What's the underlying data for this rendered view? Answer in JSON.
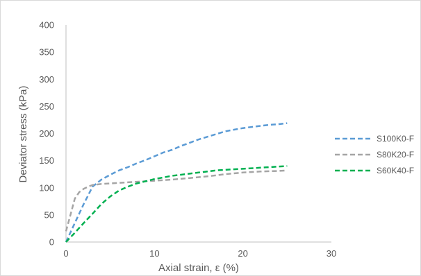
{
  "chart_data": {
    "type": "line",
    "title": "",
    "xlabel": "Axial strain, ε (%)",
    "ylabel": "Deviator stress (kPa)",
    "xlim": [
      0,
      30
    ],
    "ylim": [
      0,
      400
    ],
    "xticks": [
      0,
      10,
      20,
      30
    ],
    "yticks": [
      0,
      50,
      100,
      150,
      200,
      250,
      300,
      350,
      400
    ],
    "grid": false,
    "legend_position": "right",
    "line_style": "dashed",
    "series": [
      {
        "name": "S100K0-F",
        "color": "#5b9bd5",
        "x": [
          0,
          1,
          2,
          3,
          4,
          5,
          6,
          7,
          8,
          9,
          10,
          11,
          12,
          13,
          14,
          15,
          16,
          17,
          18,
          19,
          20,
          21,
          22,
          23,
          24,
          25
        ],
        "y": [
          0,
          35,
          70,
          102,
          115,
          124,
          132,
          138,
          145,
          151,
          158,
          165,
          170,
          177,
          183,
          189,
          194,
          199,
          204,
          207,
          210,
          212,
          214,
          216,
          217,
          219
        ]
      },
      {
        "name": "S80K20-F",
        "color": "#a5a5a5",
        "x": [
          0,
          0.5,
          1,
          1.5,
          2,
          2.5,
          3,
          4,
          5,
          6,
          7,
          8,
          9,
          10,
          12,
          14,
          16,
          18,
          20,
          22,
          24,
          25
        ],
        "y": [
          20,
          50,
          80,
          92,
          98,
          102,
          105,
          107,
          108,
          109,
          110,
          111,
          112,
          113,
          115,
          118,
          121,
          125,
          128,
          130,
          131,
          132
        ]
      },
      {
        "name": "S60K40-F",
        "color": "#00b050",
        "x": [
          0,
          1,
          2,
          3,
          4,
          5,
          6,
          7,
          8,
          9,
          10,
          11,
          12,
          13,
          14,
          15,
          16,
          17,
          18,
          19,
          20,
          21,
          22,
          23,
          24,
          25
        ],
        "y": [
          0,
          17,
          35,
          52,
          70,
          84,
          95,
          102,
          108,
          112,
          116,
          119,
          122,
          124,
          126,
          128,
          130,
          132,
          133,
          134,
          135,
          136,
          137,
          138,
          139,
          140
        ]
      }
    ]
  }
}
